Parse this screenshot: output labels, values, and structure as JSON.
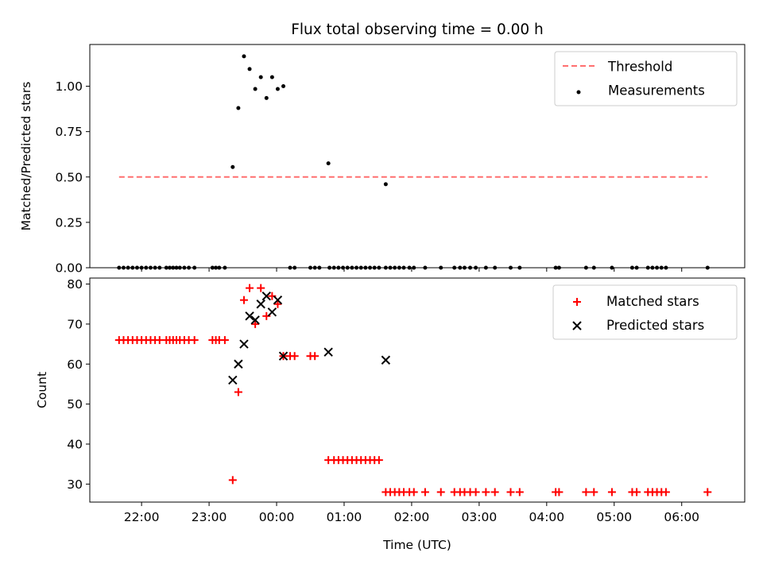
{
  "title": "Flux total observing time = 0.00 h",
  "colors": {
    "threshold": "#ff6f6f",
    "measurements": "#000000",
    "matched": "#ff0000",
    "predicted": "#000000",
    "axes": "#000000",
    "background": "#ffffff"
  },
  "chart_data": [
    {
      "type": "scatter",
      "title": "Flux total observing time = 0.00 h",
      "xlabel": "",
      "ylabel": "Matched/Predicted stars",
      "x_unit": "time (UTC)",
      "xlim": [
        "21:14",
        "06:56"
      ],
      "ylim": [
        0,
        1.23
      ],
      "yticks": [
        0.0,
        0.25,
        0.5,
        0.75,
        1.0
      ],
      "ytick_labels": [
        "0.00",
        "0.25",
        "0.50",
        "0.75",
        "1.00"
      ],
      "grid": false,
      "legend_position": "top-right",
      "threshold": {
        "name": "Threshold",
        "style": "dashed",
        "y": 0.5,
        "x_range": [
          "21:40",
          "06:23"
        ]
      },
      "series": [
        {
          "name": "Measurements",
          "marker": "dot",
          "points": [
            [
              "21:40",
              0
            ],
            [
              "21:44",
              0
            ],
            [
              "21:48",
              0
            ],
            [
              "21:52",
              0
            ],
            [
              "21:56",
              0
            ],
            [
              "22:00",
              0
            ],
            [
              "22:04",
              0
            ],
            [
              "22:08",
              0
            ],
            [
              "22:12",
              0
            ],
            [
              "22:16",
              0
            ],
            [
              "22:22",
              0
            ],
            [
              "22:25",
              0
            ],
            [
              "22:28",
              0
            ],
            [
              "22:31",
              0
            ],
            [
              "22:34",
              0
            ],
            [
              "22:38",
              0
            ],
            [
              "22:42",
              0
            ],
            [
              "22:47",
              0
            ],
            [
              "23:03",
              0
            ],
            [
              "23:06",
              0
            ],
            [
              "23:09",
              0
            ],
            [
              "23:14",
              0
            ],
            [
              "23:21",
              0.555
            ],
            [
              "23:26",
              0.88
            ],
            [
              "23:31",
              1.165
            ],
            [
              "23:36",
              1.095
            ],
            [
              "23:41",
              0.985
            ],
            [
              "23:46",
              1.05
            ],
            [
              "23:51",
              0.935
            ],
            [
              "23:56",
              1.05
            ],
            [
              "00:01",
              0.985
            ],
            [
              "00:06",
              1.0
            ],
            [
              "00:12",
              0
            ],
            [
              "00:16",
              0
            ],
            [
              "00:30",
              0
            ],
            [
              "00:34",
              0
            ],
            [
              "00:38",
              0
            ],
            [
              "00:46",
              0.575
            ],
            [
              "00:47",
              0
            ],
            [
              "00:51",
              0
            ],
            [
              "00:55",
              0
            ],
            [
              "00:59",
              0
            ],
            [
              "01:03",
              0
            ],
            [
              "01:07",
              0
            ],
            [
              "01:11",
              0
            ],
            [
              "01:15",
              0
            ],
            [
              "01:19",
              0
            ],
            [
              "01:23",
              0
            ],
            [
              "01:27",
              0
            ],
            [
              "01:31",
              0
            ],
            [
              "01:37",
              0.46
            ],
            [
              "01:37",
              0
            ],
            [
              "01:41",
              0
            ],
            [
              "01:45",
              0
            ],
            [
              "01:49",
              0
            ],
            [
              "01:53",
              0
            ],
            [
              "01:58",
              0
            ],
            [
              "02:02",
              0
            ],
            [
              "02:12",
              0
            ],
            [
              "02:26",
              0
            ],
            [
              "02:38",
              0
            ],
            [
              "02:43",
              0
            ],
            [
              "02:47",
              0
            ],
            [
              "02:52",
              0
            ],
            [
              "02:57",
              0
            ],
            [
              "03:06",
              0
            ],
            [
              "03:14",
              0
            ],
            [
              "03:28",
              0
            ],
            [
              "03:36",
              0
            ],
            [
              "04:08",
              0
            ],
            [
              "04:11",
              0
            ],
            [
              "04:35",
              0
            ],
            [
              "04:42",
              0
            ],
            [
              "04:58",
              0
            ],
            [
              "05:16",
              0
            ],
            [
              "05:20",
              0
            ],
            [
              "05:30",
              0
            ],
            [
              "05:34",
              0
            ],
            [
              "05:38",
              0
            ],
            [
              "05:42",
              0
            ],
            [
              "05:46",
              0
            ],
            [
              "06:23",
              0
            ]
          ]
        }
      ]
    },
    {
      "type": "scatter",
      "title": "",
      "xlabel": "Time (UTC)",
      "ylabel": "Count",
      "xlim": [
        "21:14",
        "06:56"
      ],
      "ylim": [
        25.5,
        81.5
      ],
      "yticks": [
        30,
        40,
        50,
        60,
        70,
        80
      ],
      "ytick_labels": [
        "30",
        "40",
        "50",
        "60",
        "70",
        "80"
      ],
      "xtick_labels": [
        "22:00",
        "23:00",
        "00:00",
        "01:00",
        "02:00",
        "03:00",
        "04:00",
        "05:00",
        "06:00"
      ],
      "xticks": [
        "22:00",
        "23:00",
        "00:00",
        "01:00",
        "02:00",
        "03:00",
        "04:00",
        "05:00",
        "06:00"
      ],
      "grid": false,
      "legend_position": "top-right",
      "series": [
        {
          "name": "Matched stars",
          "marker": "plus",
          "points": [
            [
              "21:40",
              66
            ],
            [
              "21:44",
              66
            ],
            [
              "21:48",
              66
            ],
            [
              "21:52",
              66
            ],
            [
              "21:56",
              66
            ],
            [
              "22:00",
              66
            ],
            [
              "22:04",
              66
            ],
            [
              "22:08",
              66
            ],
            [
              "22:12",
              66
            ],
            [
              "22:16",
              66
            ],
            [
              "22:22",
              66
            ],
            [
              "22:25",
              66
            ],
            [
              "22:28",
              66
            ],
            [
              "22:31",
              66
            ],
            [
              "22:34",
              66
            ],
            [
              "22:38",
              66
            ],
            [
              "22:42",
              66
            ],
            [
              "22:47",
              66
            ],
            [
              "23:03",
              66
            ],
            [
              "23:06",
              66
            ],
            [
              "23:09",
              66
            ],
            [
              "23:14",
              66
            ],
            [
              "23:21",
              31
            ],
            [
              "23:26",
              53
            ],
            [
              "23:31",
              76
            ],
            [
              "23:36",
              79
            ],
            [
              "23:41",
              70
            ],
            [
              "23:46",
              79
            ],
            [
              "23:51",
              72
            ],
            [
              "23:56",
              77
            ],
            [
              "00:01",
              75
            ],
            [
              "00:06",
              62
            ],
            [
              "00:12",
              62
            ],
            [
              "00:16",
              62
            ],
            [
              "00:30",
              62
            ],
            [
              "00:34",
              62
            ],
            [
              "00:46",
              36
            ],
            [
              "00:51",
              36
            ],
            [
              "00:55",
              36
            ],
            [
              "00:59",
              36
            ],
            [
              "01:03",
              36
            ],
            [
              "01:07",
              36
            ],
            [
              "01:11",
              36
            ],
            [
              "01:15",
              36
            ],
            [
              "01:19",
              36
            ],
            [
              "01:23",
              36
            ],
            [
              "01:27",
              36
            ],
            [
              "01:31",
              36
            ],
            [
              "01:37",
              28
            ],
            [
              "01:41",
              28
            ],
            [
              "01:45",
              28
            ],
            [
              "01:49",
              28
            ],
            [
              "01:53",
              28
            ],
            [
              "01:58",
              28
            ],
            [
              "02:02",
              28
            ],
            [
              "02:12",
              28
            ],
            [
              "02:26",
              28
            ],
            [
              "02:38",
              28
            ],
            [
              "02:43",
              28
            ],
            [
              "02:47",
              28
            ],
            [
              "02:52",
              28
            ],
            [
              "02:57",
              28
            ],
            [
              "03:06",
              28
            ],
            [
              "03:14",
              28
            ],
            [
              "03:28",
              28
            ],
            [
              "03:36",
              28
            ],
            [
              "04:08",
              28
            ],
            [
              "04:11",
              28
            ],
            [
              "04:35",
              28
            ],
            [
              "04:42",
              28
            ],
            [
              "04:58",
              28
            ],
            [
              "05:16",
              28
            ],
            [
              "05:20",
              28
            ],
            [
              "05:30",
              28
            ],
            [
              "05:34",
              28
            ],
            [
              "05:38",
              28
            ],
            [
              "05:42",
              28
            ],
            [
              "05:46",
              28
            ],
            [
              "06:23",
              28
            ]
          ]
        },
        {
          "name": "Predicted stars",
          "marker": "x",
          "points": [
            [
              "23:21",
              56
            ],
            [
              "23:26",
              60
            ],
            [
              "23:31",
              65
            ],
            [
              "23:36",
              72
            ],
            [
              "23:41",
              71
            ],
            [
              "23:46",
              75
            ],
            [
              "23:51",
              77
            ],
            [
              "23:56",
              73
            ],
            [
              "00:01",
              76
            ],
            [
              "00:06",
              62
            ],
            [
              "00:46",
              63
            ],
            [
              "01:37",
              61
            ]
          ]
        }
      ]
    }
  ]
}
